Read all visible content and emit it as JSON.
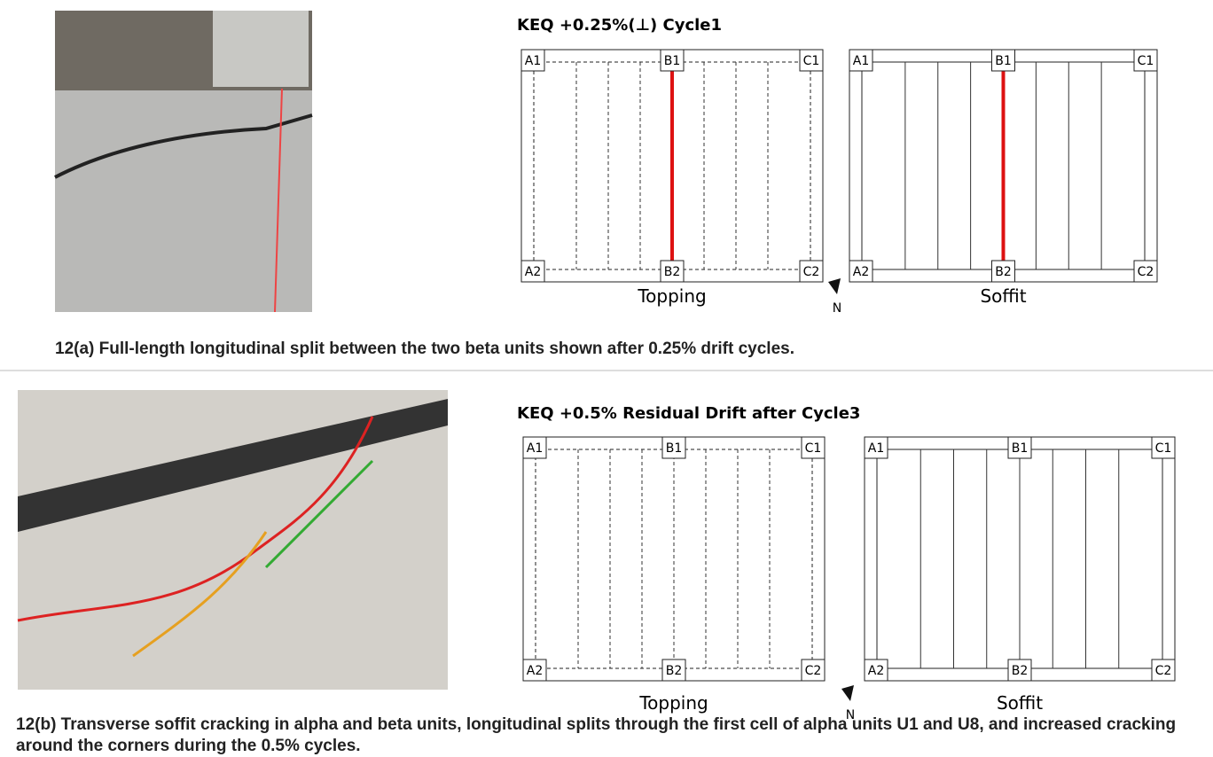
{
  "panels": [
    {
      "title": "KEQ +0.25%(⊥) Cycle1",
      "plans": [
        {
          "label": "Topping",
          "corners": [
            "A1",
            "B1",
            "C1",
            "A2",
            "B2",
            "C2"
          ]
        },
        {
          "label": "Soffit",
          "corners": [
            "A1",
            "B1",
            "C1",
            "A2",
            "B2",
            "C2"
          ]
        }
      ],
      "north": "N",
      "caption": "12(a) Full-length longitudinal split between the two beta units shown after 0.25% drift cycles."
    },
    {
      "title": "KEQ +0.5% Residual Drift after Cycle3",
      "plans": [
        {
          "label": "Topping",
          "corners": [
            "A1",
            "B1",
            "C1",
            "A2",
            "B2",
            "C2"
          ]
        },
        {
          "label": "Soffit",
          "corners": [
            "A1",
            "B1",
            "C1",
            "A2",
            "B2",
            "C2"
          ]
        }
      ],
      "north": "N",
      "caption": "12(b) Transverse soffit cracking in alpha and beta units, longitudinal splits through the first cell of alpha units U1 and U8, and increased cracking around the corners during the 0.5% cycles."
    }
  ]
}
